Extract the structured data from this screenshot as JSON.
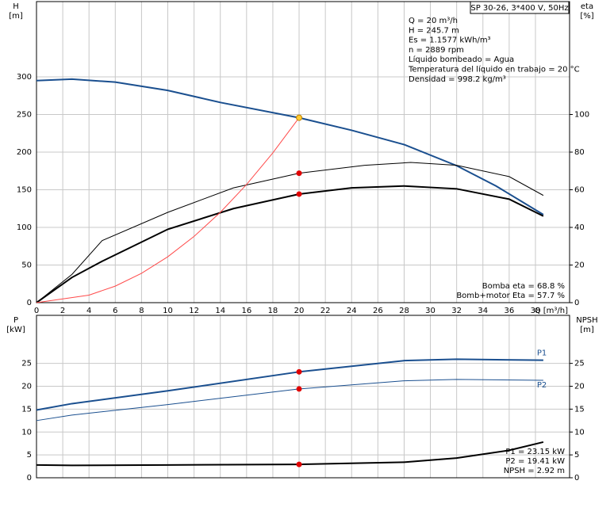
{
  "chart_data": [
    {
      "type": "line",
      "title": "SP 30-26, 3*400 V, 50Hz",
      "y_label": "H",
      "y_unit": "[m]",
      "y2_label": "eta",
      "y2_unit": "[%]",
      "x_label": "Q [m³/h]",
      "info": [
        "Q = 20 m³/h",
        "H = 245.7 m",
        "Es = 1.1577 kWh/m³",
        "n = 2889 rpm",
        "Líquido bombeado = Agua",
        "Temperatura del líquido en trabajo = 20 °C",
        "Densidad = 998.2 kg/m³"
      ],
      "annotations": [
        "Bomba eta = 68.8 %",
        "Bomb+motor Eta = 57.7 %"
      ],
      "operating_q": 20,
      "xlim": [
        0,
        40.6
      ],
      "xticks": [
        0,
        2,
        4,
        6,
        8,
        10,
        12,
        14,
        16,
        18,
        20,
        22,
        24,
        26,
        28,
        30,
        32,
        34,
        36,
        38
      ],
      "ylim": [
        0,
        400
      ],
      "yticks": [
        0,
        50,
        100,
        150,
        200,
        250,
        300
      ],
      "y2lim": [
        0,
        160
      ],
      "y2ticks": [
        0,
        20,
        40,
        60,
        80,
        100
      ],
      "grid": true,
      "series": [
        {
          "color": "#1a4f8f",
          "width": 2,
          "marker_color": "#ffcc33",
          "x": [
            0,
            2.7,
            6,
            10,
            14,
            20,
            24,
            28,
            32,
            35,
            38.6
          ],
          "values": [
            295,
            297,
            293,
            282,
            266,
            245.7,
            229,
            210,
            182,
            155,
            117
          ]
        },
        {
          "color": "#000000",
          "width": 1,
          "marker_color": "#e00000",
          "axis": "y2",
          "x": [
            0,
            2.7,
            5,
            10,
            15,
            20,
            25,
            28.5,
            32,
            36,
            38.6
          ],
          "values": [
            0,
            15,
            33,
            48,
            61,
            68.8,
            73,
            74.5,
            73,
            67,
            57
          ]
        },
        {
          "color": "#000000",
          "width": 2,
          "marker_color": "#e00000",
          "axis": "y2",
          "x": [
            0,
            2.7,
            5,
            10,
            15,
            20,
            24,
            28,
            32,
            36,
            38.6
          ],
          "values": [
            0,
            13.4,
            22,
            39,
            50,
            57.7,
            61,
            62,
            60.5,
            55,
            46
          ]
        },
        {
          "color": "#ff4a4a",
          "width": 1,
          "x": [
            0,
            4,
            6,
            8,
            10,
            12,
            14,
            16,
            18,
            20
          ],
          "values": [
            0,
            10,
            22,
            39,
            61,
            88,
            120,
            157,
            199,
            245.7
          ]
        }
      ]
    },
    {
      "type": "line",
      "y_label": "P",
      "y_unit": "[kW]",
      "y2_label": "NPSH",
      "y2_unit": "[m]",
      "annotations": [
        "P1 = 23.15 kW",
        "P2 = 19.41 kW",
        "NPSH = 2.92 m"
      ],
      "operating_q": 20,
      "xlim": [
        0,
        40.6
      ],
      "xticks": [
        0,
        2,
        4,
        6,
        8,
        10,
        12,
        14,
        16,
        18,
        20,
        22,
        24,
        26,
        28,
        30,
        32,
        34,
        36,
        38
      ],
      "ylim": [
        0,
        35.5
      ],
      "yticks": [
        0,
        5,
        10,
        15,
        20,
        25
      ],
      "y2lim": [
        0,
        35.5
      ],
      "y2ticks": [
        0,
        5,
        10,
        15,
        20,
        25
      ],
      "grid": true,
      "series": [
        {
          "name": "P1",
          "color": "#1a4f8f",
          "width": 2,
          "marker_color": "#e00000",
          "x": [
            0,
            2.7,
            10,
            20,
            28,
            32,
            38.6
          ],
          "values": [
            14.8,
            16.2,
            19,
            23.15,
            25.6,
            25.9,
            25.7
          ]
        },
        {
          "name": "P2",
          "color": "#1a4f8f",
          "width": 1,
          "marker_color": "#e00000",
          "x": [
            0,
            2.7,
            10,
            20,
            28,
            32,
            38.6
          ],
          "values": [
            12.5,
            13.7,
            16,
            19.41,
            21.2,
            21.5,
            21.3
          ]
        },
        {
          "color": "#000000",
          "width": 2,
          "marker_color": "#e00000",
          "axis": "y2",
          "x": [
            0,
            2.7,
            10,
            20,
            28,
            32,
            36,
            38.6
          ],
          "values": [
            2.8,
            2.7,
            2.8,
            2.92,
            3.4,
            4.3,
            6,
            7.8
          ]
        }
      ]
    }
  ]
}
